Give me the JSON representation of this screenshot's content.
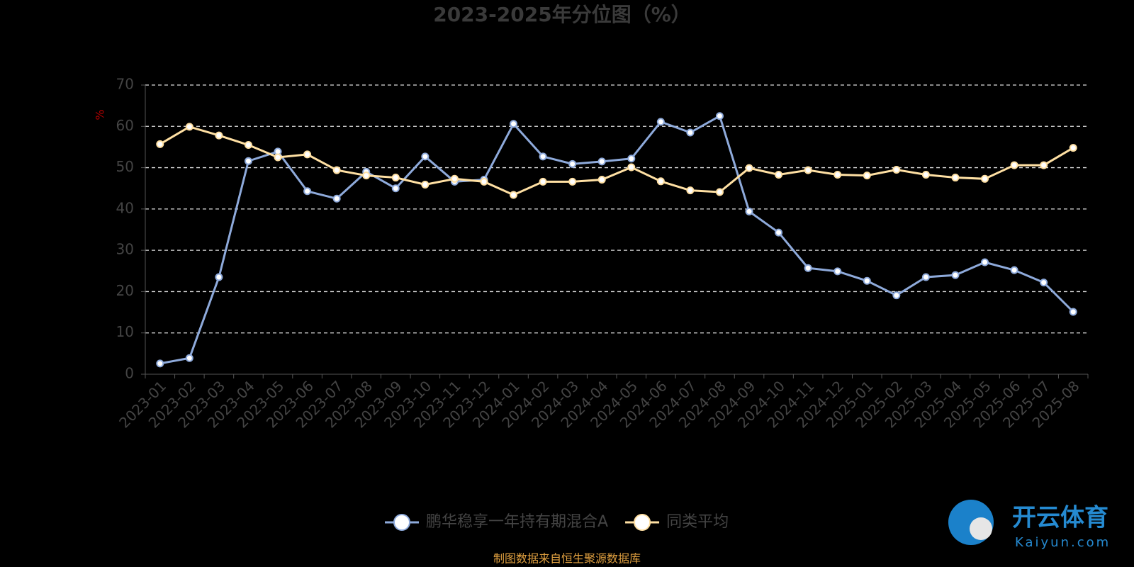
{
  "chart_data": {
    "type": "line",
    "title": "2023-2025年分位图（%）",
    "y_label": "%",
    "categories": [
      "2023-01",
      "2023-02",
      "2023-03",
      "2023-04",
      "2023-05",
      "2023-06",
      "2023-07",
      "2023-08",
      "2023-09",
      "2023-10",
      "2023-11",
      "2023-12",
      "2024-01",
      "2024-02",
      "2024-03",
      "2024-04",
      "2024-05",
      "2024-06",
      "2024-07",
      "2024-08",
      "2024-09",
      "2024-10",
      "2024-11",
      "2024-12",
      "2025-01",
      "2025-02",
      "2025-03",
      "2025-04",
      "2025-05",
      "2025-06",
      "2025-07",
      "2025-08"
    ],
    "series": [
      {
        "name": "鹏华稳享一年持有期混合A",
        "color": "#8eaadb",
        "values": [
          2.6,
          3.9,
          23.5,
          51.6,
          53.9,
          44.3,
          42.5,
          49.0,
          45.0,
          52.7,
          46.6,
          47.1,
          60.6,
          52.7,
          50.9,
          51.5,
          52.2,
          61.1,
          58.5,
          62.5,
          39.4,
          34.3,
          25.7,
          24.9,
          22.6,
          19.1,
          23.5,
          24.0,
          27.1,
          25.2,
          22.2,
          15.1
        ]
      },
      {
        "name": "同类平均",
        "color": "#ffe0a3",
        "values": [
          55.7,
          59.9,
          57.8,
          55.5,
          52.5,
          53.2,
          49.4,
          48.1,
          47.6,
          45.9,
          47.3,
          46.6,
          43.4,
          46.6,
          46.6,
          47.1,
          50.1,
          46.7,
          44.5,
          44.1,
          49.9,
          48.3,
          49.4,
          48.3,
          48.1,
          49.5,
          48.3,
          47.6,
          47.3,
          50.6,
          50.6,
          54.8
        ]
      }
    ],
    "ylim": [
      0,
      70
    ],
    "yticks": [
      0,
      10,
      20,
      30,
      40,
      50,
      60,
      70
    ],
    "grid": true,
    "source": "制图数据来自恒生聚源数据库",
    "watermark": {
      "brand": "开云体育",
      "site": "Kaiyun.com"
    }
  }
}
